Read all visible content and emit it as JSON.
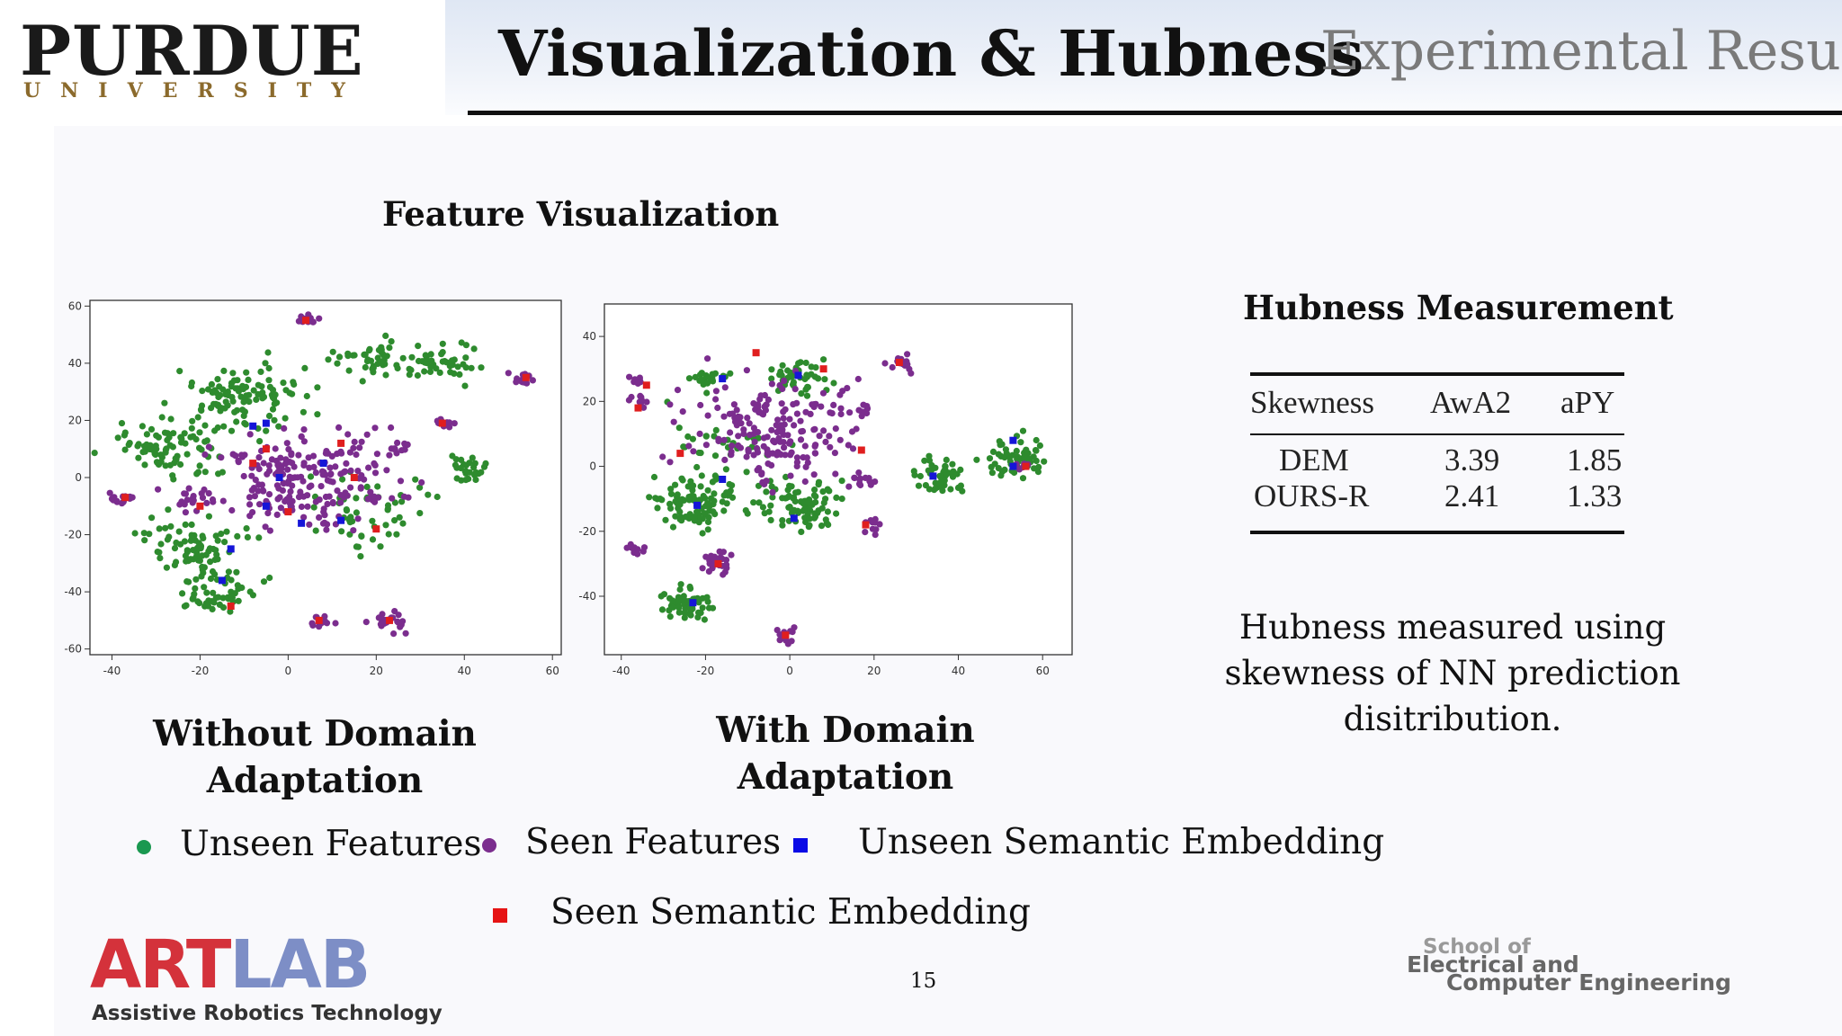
{
  "header": {
    "university_name": "PURDUE",
    "university_sub": "UNIVERSITY",
    "title": "Visualization & Hubness",
    "section": "Experimental Results"
  },
  "feature_visualization": {
    "heading": "Feature Visualization",
    "left_caption": "Without Domain Adaptation",
    "right_caption": "With Domain Adaptation"
  },
  "hubness": {
    "heading": "Hubness Measurement",
    "table": {
      "columns": [
        "Skewness",
        "AwA2",
        "aPY"
      ],
      "rows": [
        [
          "DEM",
          "3.39",
          "1.85"
        ],
        [
          "OURS-R",
          "2.41",
          "1.33"
        ]
      ]
    },
    "note": "Hubness measured using skewness of NN prediction disitribution."
  },
  "legend": [
    {
      "label": "Unseen Features",
      "marker": "circle",
      "color": "#1a9850"
    },
    {
      "label": "Seen Features",
      "marker": "circle",
      "color": "#7b2d8e"
    },
    {
      "label": "Unseen Semantic Embedding",
      "marker": "square",
      "color": "#0a0ae6"
    },
    {
      "label": "Seen Semantic Embedding",
      "marker": "square",
      "color": "#e61414"
    }
  ],
  "colors": {
    "unseen_features": "#2e8b2e",
    "seen_features": "#7b2d8e",
    "unseen_semantic": "#1515d8",
    "seen_semantic": "#e01e1e"
  },
  "chart_data": [
    {
      "type": "scatter",
      "title": "",
      "xlabel": "",
      "ylabel": "",
      "xlim": [
        -45,
        62
      ],
      "ylim": [
        -62,
        62
      ],
      "x_ticks": [
        -40,
        -20,
        0,
        20,
        40,
        60
      ],
      "y_ticks": [
        60,
        40,
        20,
        0,
        -20,
        -40,
        -60
      ],
      "series": [
        {
          "clusters": [
            {
              "x": -10,
              "y": 28,
              "r": 14,
              "n": 110
            },
            {
              "x": -27,
              "y": 12,
              "r": 12,
              "n": 85
            },
            {
              "x": 20,
              "y": 41,
              "r": 9,
              "n": 45
            },
            {
              "x": 36,
              "y": 40,
              "r": 8,
              "n": 40
            },
            {
              "x": -22,
              "y": -23,
              "r": 11,
              "n": 75
            },
            {
              "x": -16,
              "y": -40,
              "r": 9,
              "n": 55
            },
            {
              "x": 40,
              "y": 3,
              "r": 5,
              "n": 28
            },
            {
              "x": 18,
              "y": -12,
              "r": 14,
              "n": 55
            }
          ]
        },
        {
          "clusters": [
            {
              "x": 5,
              "y": 0,
              "r": 20,
              "n": 210
            },
            {
              "x": 4,
              "y": 55,
              "r": 2.5,
              "n": 12
            },
            {
              "x": 54,
              "y": 35,
              "r": 3,
              "n": 14
            },
            {
              "x": 35,
              "y": 19,
              "r": 2.5,
              "n": 10
            },
            {
              "x": -37,
              "y": -7,
              "r": 3,
              "n": 14
            },
            {
              "x": 7,
              "y": -50,
              "r": 3,
              "n": 14
            },
            {
              "x": 23,
              "y": -50,
              "r": 4,
              "n": 24
            },
            {
              "x": 25,
              "y": 10,
              "r": 3,
              "n": 12
            },
            {
              "x": -22,
              "y": -8,
              "r": 5,
              "n": 22
            }
          ]
        },
        {
          "points": [
            [
              -8,
              18
            ],
            [
              -5,
              19
            ],
            [
              -13,
              -25
            ],
            [
              -15,
              -36
            ],
            [
              8,
              5
            ],
            [
              -2,
              0
            ],
            [
              12,
              -15
            ],
            [
              -5,
              -10
            ],
            [
              3,
              -16
            ]
          ]
        },
        {
          "points": [
            [
              4,
              55
            ],
            [
              54,
              35
            ],
            [
              35,
              19
            ],
            [
              -37,
              -7
            ],
            [
              7,
              -50
            ],
            [
              23,
              -50
            ],
            [
              -13,
              -45
            ],
            [
              15,
              0
            ],
            [
              20,
              -18
            ],
            [
              -5,
              10
            ],
            [
              -20,
              -10
            ],
            [
              12,
              12
            ],
            [
              -8,
              5
            ],
            [
              0,
              -12
            ]
          ]
        }
      ]
    },
    {
      "type": "scatter",
      "title": "",
      "xlabel": "",
      "ylabel": "",
      "xlim": [
        -44,
        67
      ],
      "ylim": [
        -58,
        50
      ],
      "x_ticks": [
        -40,
        -20,
        0,
        20,
        40,
        60
      ],
      "y_ticks": [
        40,
        20,
        0,
        -20,
        -40
      ],
      "series": [
        {
          "clusters": [
            {
              "x": -22,
              "y": -10,
              "r": 10,
              "n": 95
            },
            {
              "x": 2,
              "y": -12,
              "r": 9,
              "n": 85
            },
            {
              "x": -24,
              "y": -42,
              "r": 6,
              "n": 55
            },
            {
              "x": 2,
              "y": 28,
              "r": 6,
              "n": 45
            },
            {
              "x": -20,
              "y": 27,
              "r": 4,
              "n": 22
            },
            {
              "x": 35,
              "y": -3,
              "r": 6,
              "n": 45
            },
            {
              "x": 54,
              "y": 3,
              "r": 7,
              "n": 60
            },
            {
              "x": -15,
              "y": 5,
              "r": 14,
              "n": 35
            }
          ]
        },
        {
          "clusters": [
            {
              "x": -3,
              "y": 10,
              "r": 20,
              "n": 190
            },
            {
              "x": -36,
              "y": 20,
              "r": 2.5,
              "n": 10
            },
            {
              "x": -37,
              "y": 26,
              "r": 2,
              "n": 8
            },
            {
              "x": 26,
              "y": 32,
              "r": 3,
              "n": 16
            },
            {
              "x": 18,
              "y": 18,
              "r": 2,
              "n": 8
            },
            {
              "x": -37,
              "y": -25,
              "r": 2.5,
              "n": 10
            },
            {
              "x": -17,
              "y": -30,
              "r": 4,
              "n": 24
            },
            {
              "x": -1,
              "y": -52,
              "r": 2.5,
              "n": 12
            },
            {
              "x": 20,
              "y": -18,
              "r": 2.5,
              "n": 10
            },
            {
              "x": 17,
              "y": -5,
              "r": 3,
              "n": 12
            },
            {
              "x": 55,
              "y": 0,
              "r": 2,
              "n": 6
            }
          ]
        },
        {
          "points": [
            [
              -22,
              -12
            ],
            [
              1,
              -16
            ],
            [
              -23,
              -42
            ],
            [
              2,
              28
            ],
            [
              -16,
              -4
            ],
            [
              34,
              -3
            ],
            [
              53,
              8
            ],
            [
              53,
              0
            ],
            [
              -16,
              27
            ]
          ]
        },
        {
          "points": [
            [
              -34,
              25
            ],
            [
              -36,
              18
            ],
            [
              26,
              32
            ],
            [
              -1,
              -52
            ],
            [
              -17,
              -30
            ],
            [
              18,
              -18
            ],
            [
              56,
              0
            ],
            [
              -8,
              35
            ],
            [
              8,
              30
            ],
            [
              17,
              5
            ],
            [
              -26,
              4
            ]
          ]
        }
      ]
    }
  ],
  "footer": {
    "lab_part1": "ART",
    "lab_part2": "LAB",
    "lab_tagline": "Assistive Robotics Technology",
    "page_number": "15",
    "ece_line1": "School of",
    "ece_line2": "Electrical and",
    "ece_line3": "Computer Engineering"
  }
}
